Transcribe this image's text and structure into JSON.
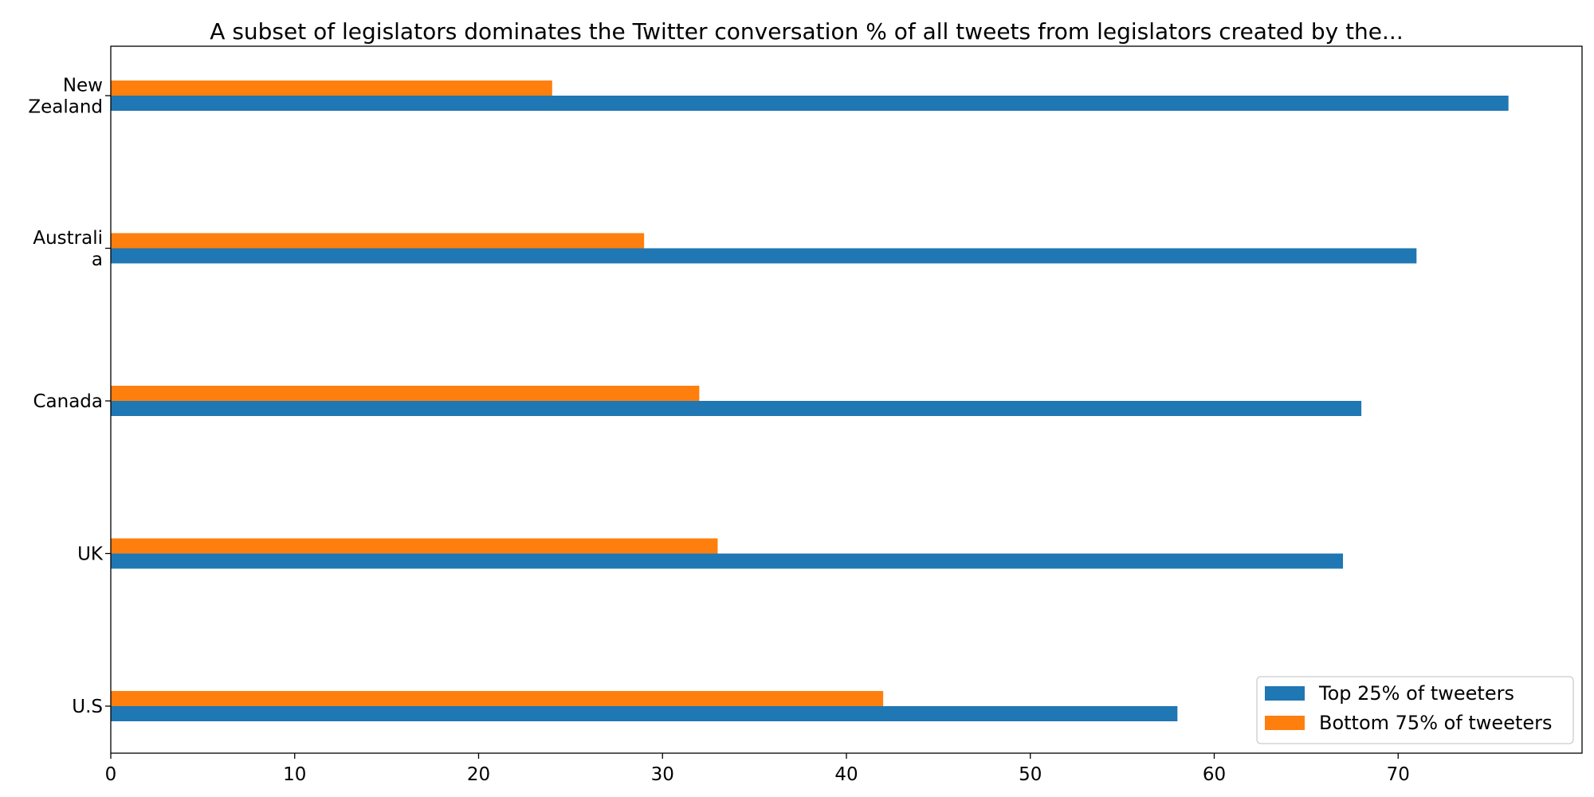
{
  "chart_data": {
    "type": "bar",
    "orientation": "horizontal",
    "title": "A subset of legislators dominates the Twitter conversation % of all tweets from legislators created by the...",
    "xlabel": "",
    "ylabel": "",
    "xlim": [
      0,
      80
    ],
    "xticks": [
      "0",
      "10",
      "20",
      "30",
      "40",
      "50",
      "60",
      "70"
    ],
    "categories": [
      [
        "U.S"
      ],
      [
        "UK"
      ],
      [
        "Canada"
      ],
      [
        "Australi",
        "a"
      ],
      [
        "New",
        "Zealand"
      ]
    ],
    "series": [
      {
        "name": "Top 25% of tweeters",
        "color": "#1f77b4",
        "values": [
          58,
          67,
          68,
          71,
          76
        ]
      },
      {
        "name": "Bottom 75% of tweeters",
        "color": "#ff7f0e",
        "values": [
          42,
          33,
          32,
          29,
          24
        ]
      }
    ],
    "grid": false,
    "legend": "bottom-right"
  }
}
